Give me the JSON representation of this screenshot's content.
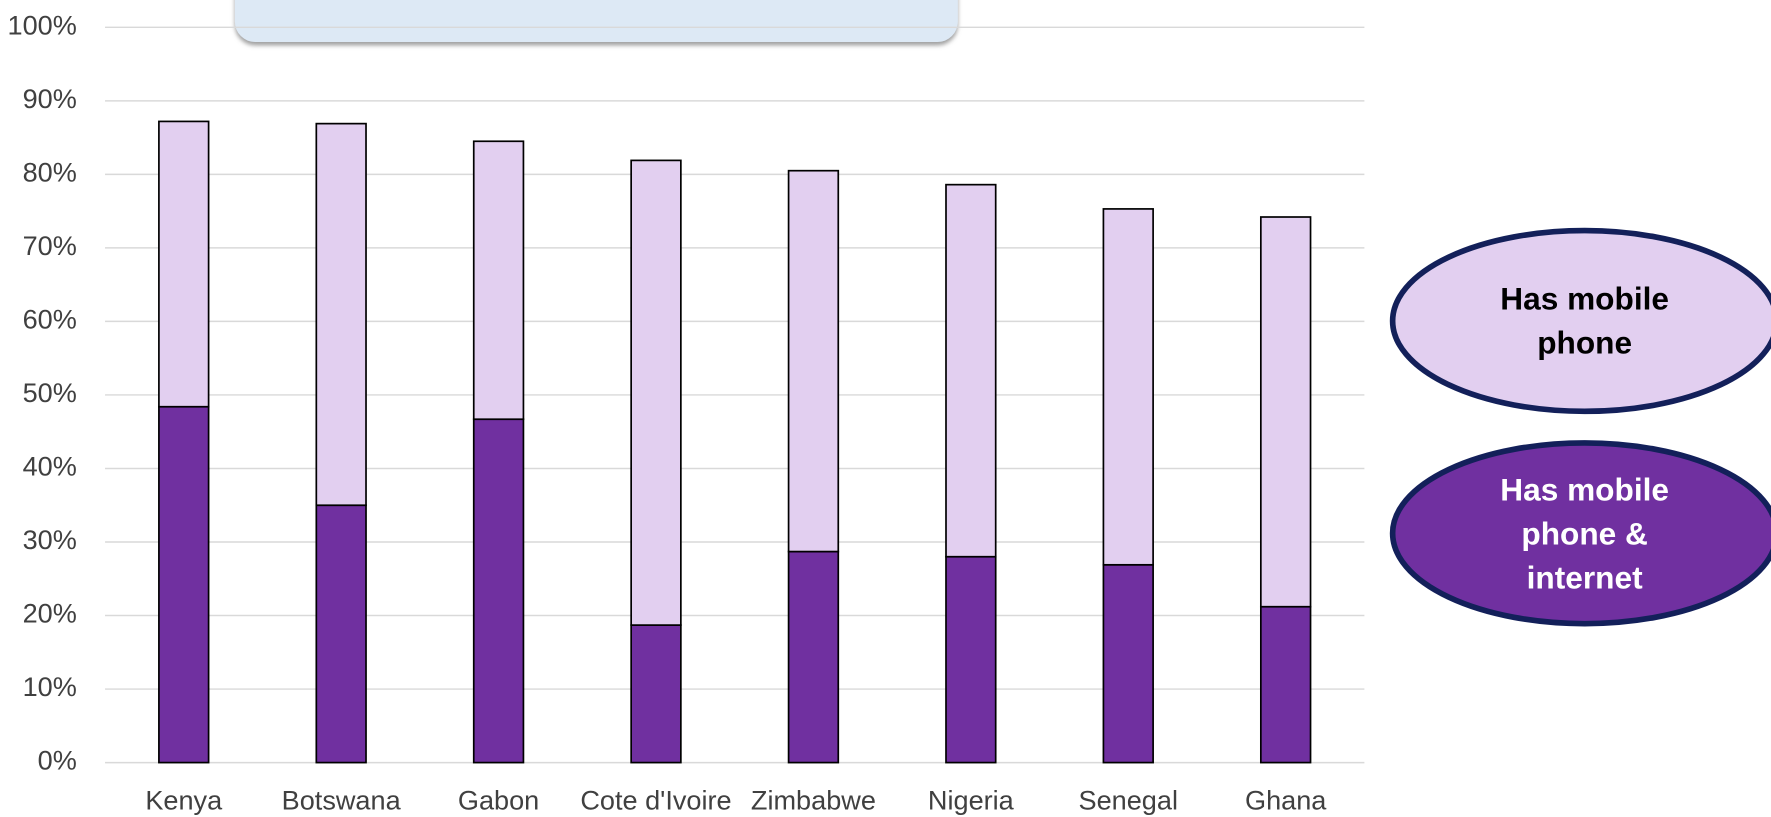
{
  "chart_data": {
    "type": "stacked_bar",
    "categories": [
      "Kenya",
      "Botswana",
      "Gabon",
      "Cote d'Ivoire",
      "Zimbabwe",
      "Nigeria",
      "Senegal",
      "Ghana"
    ],
    "series": [
      {
        "name": "Has mobile phone & internet",
        "color": "#7030a0",
        "values": [
          48.4,
          35.0,
          46.7,
          18.7,
          28.7,
          28.0,
          26.9,
          21.2
        ]
      },
      {
        "name": "Has mobile phone",
        "color": "#e2cff0",
        "values": [
          38.8,
          51.9,
          37.8,
          63.2,
          51.8,
          50.6,
          48.4,
          53.0
        ]
      }
    ],
    "ylim": [
      0,
      100
    ],
    "yticks": [
      {
        "value": 0,
        "label": "0%"
      },
      {
        "value": 10,
        "label": "10%"
      },
      {
        "value": 20,
        "label": "20%"
      },
      {
        "value": 30,
        "label": "30%"
      },
      {
        "value": 40,
        "label": "40%"
      },
      {
        "value": 50,
        "label": "50%"
      },
      {
        "value": 60,
        "label": "60%"
      },
      {
        "value": 70,
        "label": "70%"
      },
      {
        "value": 80,
        "label": "80%"
      },
      {
        "value": 90,
        "label": "90%"
      },
      {
        "value": 100,
        "label": "100%"
      }
    ],
    "grid": true
  }
}
